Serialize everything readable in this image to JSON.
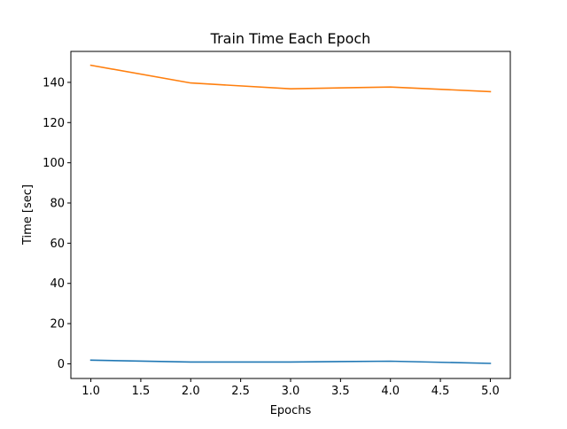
{
  "chart_data": {
    "type": "line",
    "title": "Train Time Each Epoch",
    "xlabel": "Epochs",
    "ylabel": "Time [sec]",
    "xlim": [
      0.8,
      5.2
    ],
    "ylim": [
      -7.3,
      155.4
    ],
    "xticks": [
      1.0,
      1.5,
      2.0,
      2.5,
      3.0,
      3.5,
      4.0,
      4.5,
      5.0
    ],
    "xtick_labels": [
      "1.0",
      "1.5",
      "2.0",
      "2.5",
      "3.0",
      "3.5",
      "4.0",
      "4.5",
      "5.0"
    ],
    "yticks": [
      0,
      20,
      40,
      60,
      80,
      100,
      120,
      140
    ],
    "ytick_labels": [
      "0",
      "20",
      "40",
      "60",
      "80",
      "100",
      "120",
      "140"
    ],
    "grid": false,
    "legend": "none",
    "x": [
      1,
      2,
      3,
      4,
      5
    ],
    "series": [
      {
        "color": "#1f77b4",
        "values": [
          1.8,
          0.9,
          0.9,
          1.3,
          0.2
        ]
      },
      {
        "color": "#ff7f0e",
        "values": [
          148.5,
          139.7,
          136.8,
          137.7,
          135.4
        ]
      }
    ]
  }
}
